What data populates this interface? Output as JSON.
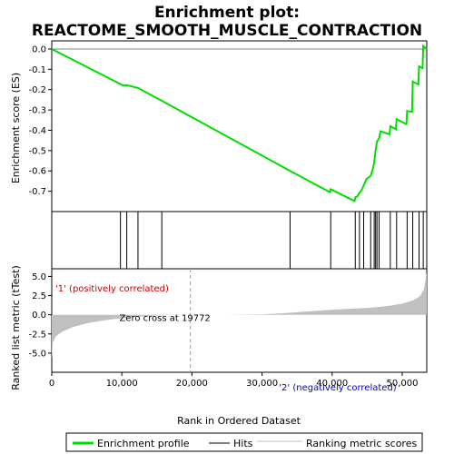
{
  "title_line1": "Enrichment plot:",
  "title_line2": "REACTOME_SMOOTH_MUSCLE_CONTRACTION",
  "chart_data": {
    "type": "line",
    "xlabel": "Rank in Ordered Dataset",
    "xlim": [
      0,
      53500
    ],
    "x_ticks": [
      0,
      10000,
      20000,
      30000,
      40000,
      50000
    ],
    "x_tick_labels": [
      "0",
      "10,000",
      "20,000",
      "30,000",
      "40,000",
      "50,000"
    ],
    "es_panel": {
      "ylabel": "Enrichment score (ES)",
      "ylim": [
        -0.8,
        0.04
      ],
      "y_ticks": [
        0.0,
        -0.1,
        -0.2,
        -0.3,
        -0.4,
        -0.5,
        -0.6,
        -0.7
      ],
      "y_tick_labels": [
        "0.0",
        "-0.1",
        "-0.2",
        "-0.3",
        "-0.4",
        "-0.5",
        "-0.6",
        "-0.7"
      ],
      "color": "#00dd00",
      "points": [
        [
          0,
          0.0
        ],
        [
          9800,
          -0.173
        ],
        [
          10200,
          -0.18
        ],
        [
          10700,
          -0.178
        ],
        [
          12300,
          -0.192
        ],
        [
          15700,
          -0.255
        ],
        [
          34000,
          -0.6
        ],
        [
          39700,
          -0.705
        ],
        [
          39800,
          -0.69
        ],
        [
          43200,
          -0.748
        ],
        [
          43300,
          -0.73
        ],
        [
          43600,
          -0.725
        ],
        [
          43900,
          -0.708
        ],
        [
          44200,
          -0.695
        ],
        [
          44500,
          -0.672
        ],
        [
          44900,
          -0.64
        ],
        [
          45500,
          -0.625
        ],
        [
          45800,
          -0.59
        ],
        [
          46000,
          -0.56
        ],
        [
          46200,
          -0.5
        ],
        [
          46400,
          -0.455
        ],
        [
          46700,
          -0.44
        ],
        [
          46900,
          -0.405
        ],
        [
          48200,
          -0.42
        ],
        [
          48300,
          -0.38
        ],
        [
          49100,
          -0.395
        ],
        [
          49200,
          -0.345
        ],
        [
          50600,
          -0.37
        ],
        [
          50700,
          -0.305
        ],
        [
          51400,
          -0.31
        ],
        [
          51500,
          -0.16
        ],
        [
          52300,
          -0.175
        ],
        [
          52400,
          -0.085
        ],
        [
          52900,
          -0.095
        ],
        [
          53000,
          0.015
        ],
        [
          53500,
          0.0
        ]
      ]
    },
    "hits": [
      9800,
      10700,
      12300,
      15700,
      34000,
      39800,
      43300,
      43900,
      44500,
      45500,
      46000,
      46200,
      46400,
      46700,
      48300,
      49200,
      50700,
      51500,
      52400,
      53000
    ],
    "metric_panel": {
      "ylabel": "Ranked list metric (tTest)",
      "ylim": [
        -7.5,
        6.0
      ],
      "y_ticks": [
        5.0,
        2.5,
        0.0,
        -2.5,
        -5.0
      ],
      "y_tick_labels": [
        "5.0",
        "2.5",
        "0.0",
        "-2.5",
        "-5.0"
      ],
      "fill_color": "#c0c0c0",
      "profile": [
        [
          0,
          -5.8
        ],
        [
          150,
          -3.6
        ],
        [
          600,
          -2.8
        ],
        [
          1500,
          -2.2
        ],
        [
          3000,
          -1.6
        ],
        [
          5000,
          -1.1
        ],
        [
          7000,
          -0.8
        ],
        [
          9000,
          -0.55
        ],
        [
          11000,
          -0.35
        ],
        [
          13000,
          -0.2
        ],
        [
          15000,
          -0.1
        ],
        [
          17000,
          -0.04
        ],
        [
          19772,
          0.0
        ],
        [
          25000,
          0.0
        ],
        [
          30000,
          0.05
        ],
        [
          33000,
          0.2
        ],
        [
          36000,
          0.4
        ],
        [
          39000,
          0.6
        ],
        [
          42000,
          0.75
        ],
        [
          45000,
          0.9
        ],
        [
          48000,
          1.15
        ],
        [
          50000,
          1.45
        ],
        [
          51500,
          1.85
        ],
        [
          52500,
          2.4
        ],
        [
          53100,
          3.3
        ],
        [
          53400,
          5.0
        ],
        [
          53500,
          5.5
        ]
      ],
      "zero_cross_x": 19772,
      "zero_cross_label": "Zero cross at 19772",
      "pos_label": "'1' (positively correlated)",
      "neg_label": "'2' (negatively correlated)",
      "pos_color": "#cc0000",
      "neg_color": "#0000cc"
    },
    "colorbar_segments": [
      [
        0,
        22500,
        "#f4c6e0"
      ],
      [
        22500,
        24000,
        "#f6a0b0"
      ],
      [
        24000,
        25500,
        "#f47a88"
      ],
      [
        25500,
        36000,
        "#f05a5a"
      ],
      [
        36000,
        39800,
        "#e83838"
      ],
      [
        39800,
        41000,
        "#dd1010"
      ],
      [
        41000,
        41800,
        "#1a1ae0"
      ],
      [
        41800,
        44600,
        "#6464ee"
      ],
      [
        44600,
        53500,
        "#cccef8"
      ]
    ],
    "legend": [
      {
        "label": "Enrichment profile",
        "color": "#00dd00",
        "kind": "thick-line"
      },
      {
        "label": "Hits",
        "color": "#000000",
        "kind": "line"
      },
      {
        "label": "Ranking metric scores",
        "color": "#c0c0c0",
        "kind": "line"
      }
    ]
  }
}
